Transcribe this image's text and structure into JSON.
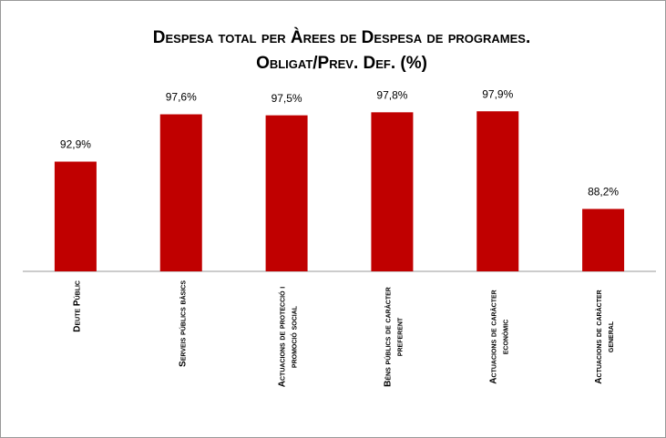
{
  "chart_data": {
    "type": "bar",
    "title": [
      "Despesa total per Àrees de Despesa de programes.",
      "Obligat/Prev. Def. (%)"
    ],
    "categories": [
      [
        "Deute Públic"
      ],
      [
        "Serveis públics bàsics"
      ],
      [
        "Actuacions de protecció i",
        "promoció social"
      ],
      [
        "Béns públics de caràcter",
        "preferent"
      ],
      [
        "Actuacions de caràcter",
        "econòmic"
      ],
      [
        "Actuacions de caràcter",
        "general"
      ]
    ],
    "values": [
      92.9,
      97.6,
      97.5,
      97.8,
      97.9,
      88.2
    ],
    "value_labels": [
      "92,9%",
      "97,6%",
      "97,5%",
      "97,8%",
      "97,9%",
      "88,2%"
    ],
    "color": "#c00000",
    "ylim": [
      82,
      100
    ]
  }
}
